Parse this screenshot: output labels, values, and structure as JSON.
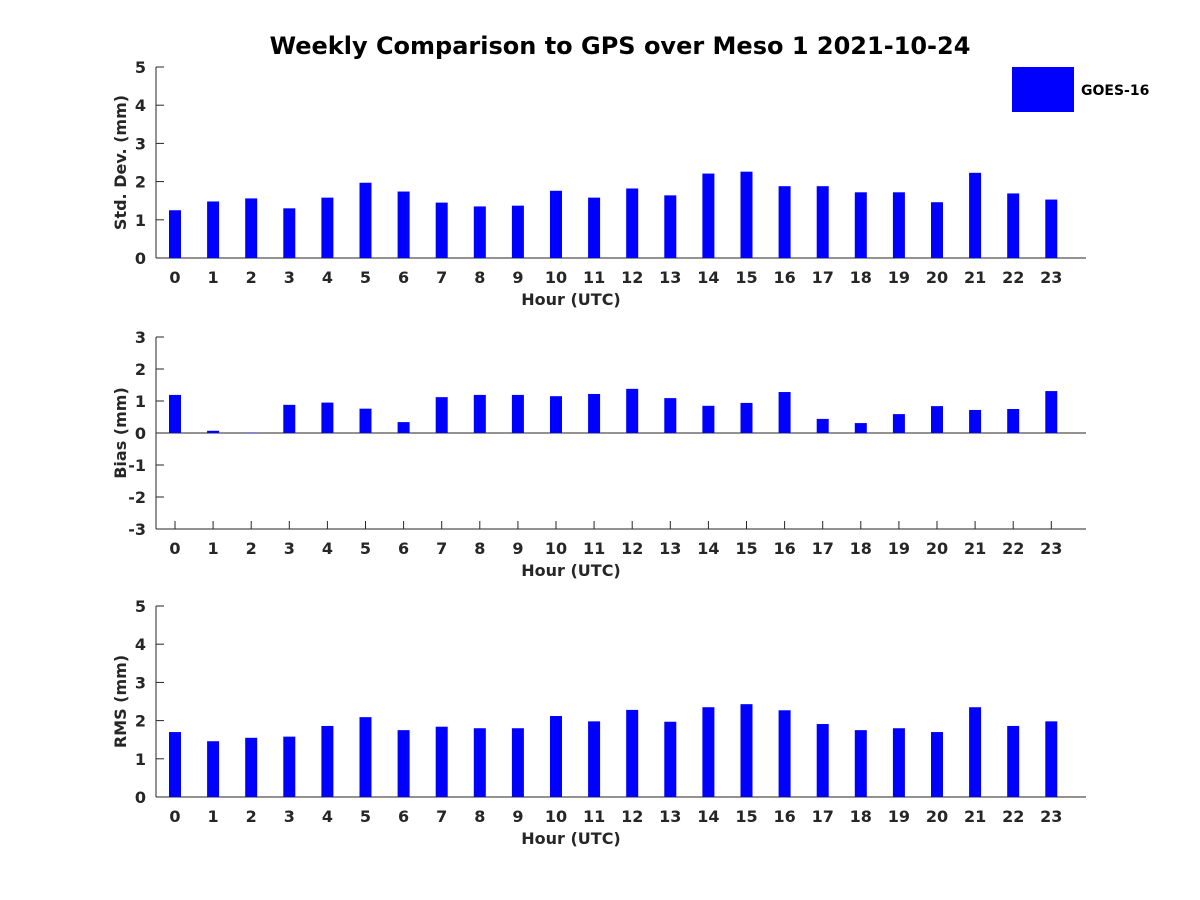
{
  "title": "Weekly Comparison to GPS over Meso 1 2021-10-24",
  "legend": {
    "label": "GOES-16",
    "color": "#0000ff"
  },
  "bar_color": "#0000ff",
  "chart_data": [
    {
      "type": "bar",
      "xlabel": "Hour (UTC)",
      "ylabel": "Std. Dev. (mm)",
      "ylim": [
        0,
        5
      ],
      "yticks": [
        0,
        1,
        2,
        3,
        4,
        5
      ],
      "categories": [
        "0",
        "1",
        "2",
        "3",
        "4",
        "5",
        "6",
        "7",
        "8",
        "9",
        "10",
        "11",
        "12",
        "13",
        "14",
        "15",
        "16",
        "17",
        "18",
        "19",
        "20",
        "21",
        "22",
        "23"
      ],
      "series": [
        {
          "name": "GOES-16",
          "values": [
            1.25,
            1.48,
            1.56,
            1.3,
            1.58,
            1.97,
            1.74,
            1.45,
            1.35,
            1.37,
            1.76,
            1.58,
            1.82,
            1.64,
            2.21,
            2.26,
            1.88,
            1.88,
            1.72,
            1.72,
            1.46,
            2.23,
            1.69,
            1.53
          ]
        }
      ]
    },
    {
      "type": "bar",
      "xlabel": "Hour (UTC)",
      "ylabel": "Bias (mm)",
      "ylim": [
        -3,
        3
      ],
      "yticks": [
        -3,
        -2,
        -1,
        0,
        1,
        2,
        3
      ],
      "categories": [
        "0",
        "1",
        "2",
        "3",
        "4",
        "5",
        "6",
        "7",
        "8",
        "9",
        "10",
        "11",
        "12",
        "13",
        "14",
        "15",
        "16",
        "17",
        "18",
        "19",
        "20",
        "21",
        "22",
        "23"
      ],
      "series": [
        {
          "name": "GOES-16",
          "values": [
            1.19,
            0.07,
            0.01,
            0.88,
            0.95,
            0.76,
            0.34,
            1.12,
            1.19,
            1.19,
            1.15,
            1.22,
            1.38,
            1.09,
            0.85,
            0.94,
            1.28,
            0.44,
            0.31,
            0.59,
            0.84,
            0.72,
            0.75,
            1.31
          ]
        }
      ]
    },
    {
      "type": "bar",
      "xlabel": "Hour (UTC)",
      "ylabel": "RMS (mm)",
      "ylim": [
        0,
        5
      ],
      "yticks": [
        0,
        1,
        2,
        3,
        4,
        5
      ],
      "categories": [
        "0",
        "1",
        "2",
        "3",
        "4",
        "5",
        "6",
        "7",
        "8",
        "9",
        "10",
        "11",
        "12",
        "13",
        "14",
        "15",
        "16",
        "17",
        "18",
        "19",
        "20",
        "21",
        "22",
        "23"
      ],
      "series": [
        {
          "name": "GOES-16",
          "values": [
            1.7,
            1.46,
            1.55,
            1.58,
            1.86,
            2.09,
            1.75,
            1.84,
            1.8,
            1.8,
            2.12,
            1.98,
            2.28,
            1.97,
            2.35,
            2.43,
            2.27,
            1.91,
            1.75,
            1.8,
            1.7,
            2.35,
            1.86,
            1.98
          ]
        }
      ]
    }
  ]
}
